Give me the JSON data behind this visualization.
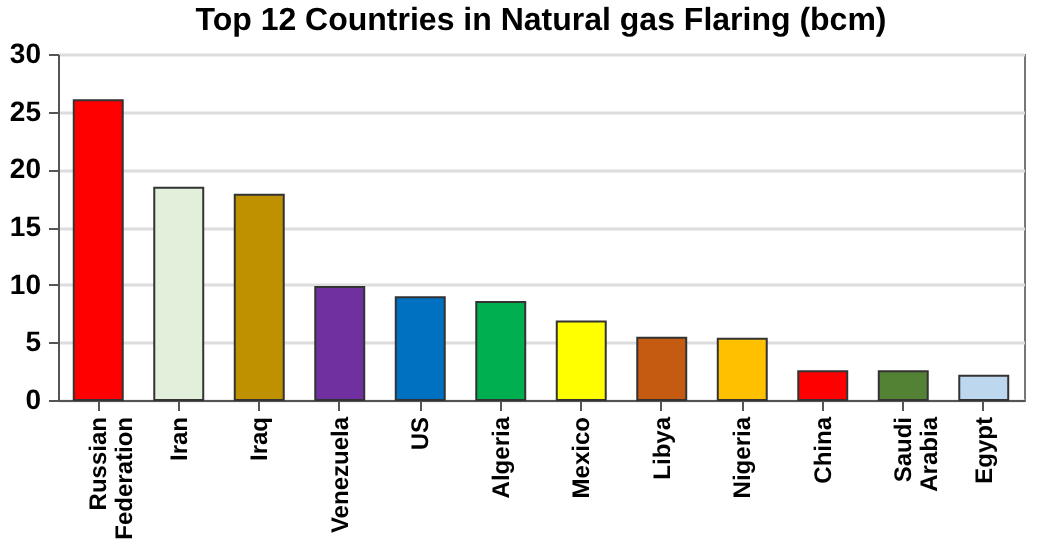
{
  "chart_data": {
    "type": "bar",
    "title": "Top 12 Countries in Natural gas Flaring (bcm)",
    "categories": [
      "Russian Federation",
      "Iran",
      "Iraq",
      "Venezuela",
      "US",
      "Algeria",
      "Mexico",
      "Libya",
      "Nigeria",
      "China",
      "Saudi Arabia",
      "Egypt"
    ],
    "values": [
      26.0,
      18.4,
      17.8,
      9.8,
      8.9,
      8.5,
      6.8,
      5.4,
      5.3,
      2.5,
      2.5,
      2.1
    ],
    "colors": [
      "#ff0000",
      "#e2efda",
      "#bf9000",
      "#7030a0",
      "#0070c0",
      "#00b050",
      "#ffff00",
      "#c55a11",
      "#ffc000",
      "#ff0000",
      "#548235",
      "#bdd7ee"
    ],
    "ylim": [
      0,
      30
    ],
    "yticks": [
      0,
      5,
      10,
      15,
      20,
      25,
      30
    ],
    "grid": "y"
  }
}
